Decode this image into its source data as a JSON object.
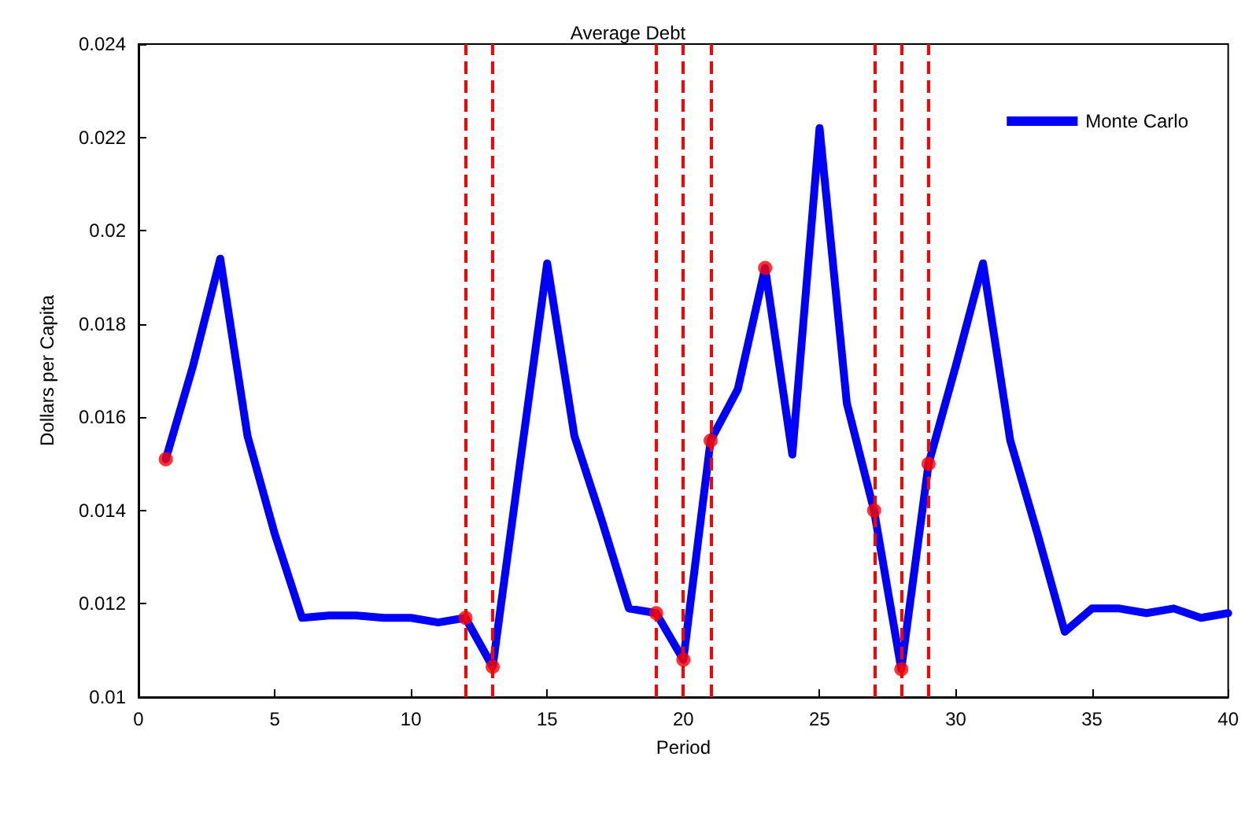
{
  "chart_data": {
    "type": "line",
    "title": "Average Debt",
    "xlabel": "Period",
    "ylabel": "Dollars per Capita",
    "xlim": [
      0,
      40
    ],
    "xticks": [
      0,
      5,
      10,
      15,
      20,
      25,
      30,
      35,
      40
    ],
    "ylim": [
      0.01,
      0.024
    ],
    "yticks": [
      0.01,
      0.012,
      0.014,
      0.016,
      0.018,
      0.02,
      0.022,
      0.024
    ],
    "grid": false,
    "legend": "top right",
    "marker": "none",
    "line_style": "solid",
    "series": [
      {
        "name": "Monte Carlo",
        "color": "#0000ff",
        "x": [
          1,
          2,
          3,
          4,
          5,
          6,
          7,
          8,
          9,
          10,
          11,
          12,
          13,
          14,
          15,
          16,
          17,
          18,
          19,
          20,
          21,
          22,
          23,
          24,
          25,
          26,
          27,
          28,
          29,
          30,
          31,
          32,
          33,
          34,
          35,
          36,
          37,
          38,
          39,
          40
        ],
        "values": [
          0.0151,
          0.0171,
          0.0194,
          0.0156,
          0.0135,
          0.0117,
          0.01175,
          0.01175,
          0.0117,
          0.0117,
          0.0116,
          0.0117,
          0.01065,
          0.015,
          0.0193,
          0.0156,
          0.0138,
          0.0119,
          0.0118,
          0.0108,
          0.0155,
          0.0166,
          0.0192,
          0.0152,
          0.0222,
          0.0163,
          0.014,
          0.0106,
          0.015,
          0.0171,
          0.0193,
          0.0155,
          0.0135,
          0.0114,
          0.0119,
          0.0119,
          0.0118,
          0.0119,
          0.0117,
          0.0118
        ]
      },
      {
        "type": "scatter",
        "color": "#ff0000",
        "marker": "circle",
        "x": [
          1,
          12,
          13,
          19,
          20,
          21,
          23,
          27,
          28,
          29
        ],
        "values": [
          0.0151,
          0.0117,
          0.01065,
          0.0118,
          0.0108,
          0.0155,
          0.0192,
          0.014,
          0.0106,
          0.015
        ]
      }
    ],
    "ref_lines": [
      {
        "axis": "x",
        "value": 12,
        "color": "#ff0000",
        "line_style": "dashed"
      },
      {
        "axis": "x",
        "value": 13,
        "color": "#ff0000",
        "line_style": "dashed"
      },
      {
        "axis": "x",
        "value": 19,
        "color": "#ff0000",
        "line_style": "dashed"
      },
      {
        "axis": "x",
        "value": 20,
        "color": "#ff0000",
        "line_style": "dashed"
      },
      {
        "axis": "x",
        "value": 21,
        "color": "#ff0000",
        "line_style": "dashed"
      },
      {
        "axis": "x",
        "value": 27,
        "color": "#ff0000",
        "line_style": "dashed"
      },
      {
        "axis": "x",
        "value": 28,
        "color": "#ff0000",
        "line_style": "dashed"
      },
      {
        "axis": "x",
        "value": 29,
        "color": "#ff0000",
        "line_style": "dashed"
      }
    ]
  }
}
